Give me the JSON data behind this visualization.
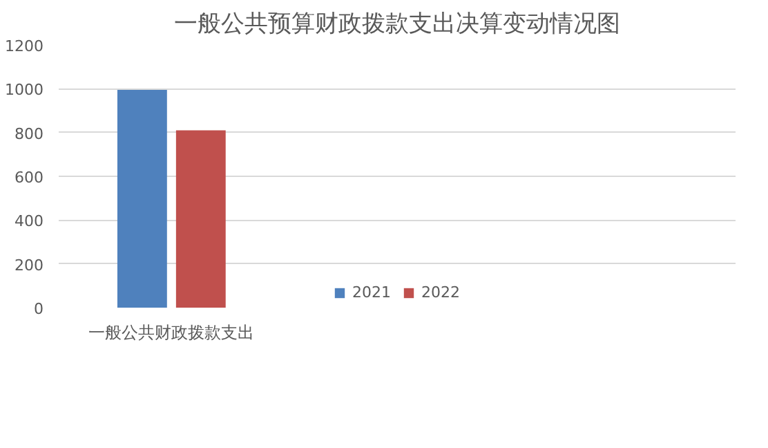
{
  "chart_data": {
    "type": "bar",
    "title": "一般公共预算财政拨款支出决算变动情况图",
    "categories": [
      "一般公共财政拨款支出",
      null,
      null
    ],
    "series": [
      {
        "name": "2021",
        "color": "#4f81bd",
        "values": [
          995,
          null,
          null
        ]
      },
      {
        "name": "2022",
        "color": "#c0504d",
        "values": [
          810,
          null,
          null
        ]
      }
    ],
    "ylim": [
      0,
      1200
    ],
    "yticks": [
      0,
      200,
      400,
      600,
      800,
      1000,
      1200
    ],
    "grid": "y",
    "legend": "bottom"
  }
}
